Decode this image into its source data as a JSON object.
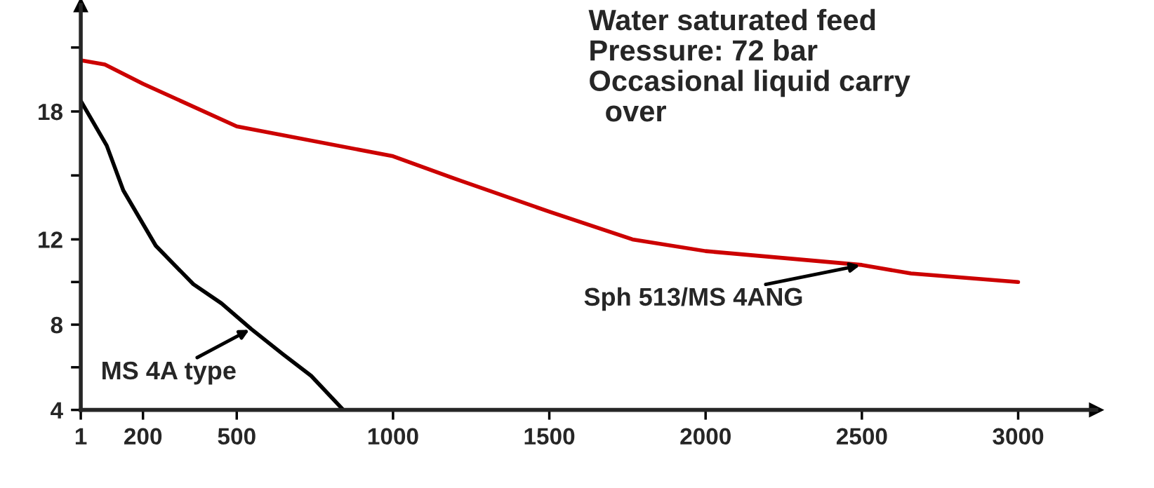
{
  "chart_data": {
    "type": "line",
    "series": [
      {
        "color": "#cc0000",
        "x": [
          1,
          78,
          200,
          500,
          1000,
          1187,
          1500,
          1766,
          2000,
          2500,
          2657,
          3000
        ],
        "values": [
          20.4,
          20.2,
          19.3,
          17.3,
          15.9,
          14.9,
          13.3,
          12.0,
          11.45,
          10.8,
          10.4,
          10.0
        ]
      },
      {
        "color": "#000000",
        "x": [
          1,
          84,
          137,
          241,
          361,
          451,
          546,
          649,
          738,
          841
        ],
        "values": [
          18.5,
          16.4,
          14.3,
          11.7,
          9.9,
          9.0,
          7.8,
          6.6,
          5.6,
          4
        ]
      }
    ],
    "xlim": [
      1,
      3250
    ],
    "xticks": [
      1,
      200,
      500,
      1000,
      1500,
      2000,
      2500,
      3000
    ],
    "ylim": [
      4,
      23
    ],
    "yticks": [
      4,
      {
        "value": 6,
        "label": null
      },
      8,
      {
        "value": 10,
        "label": null
      },
      12,
      {
        "value": 15,
        "label": null
      },
      18,
      {
        "value": 21,
        "label": null
      }
    ],
    "grid": false,
    "legend": false,
    "line_style": "solid",
    "marker": "none",
    "annotations": [
      "Water saturated feed\nPressure: 72 bar\nOccasional liquid carry\n  over",
      {
        "text": "Sph 513/MS 4ANG",
        "x": 2500,
        "y": 10.8
      },
      {
        "text": "MS 4A type",
        "x": 546,
        "y": 7.8
      }
    ]
  }
}
